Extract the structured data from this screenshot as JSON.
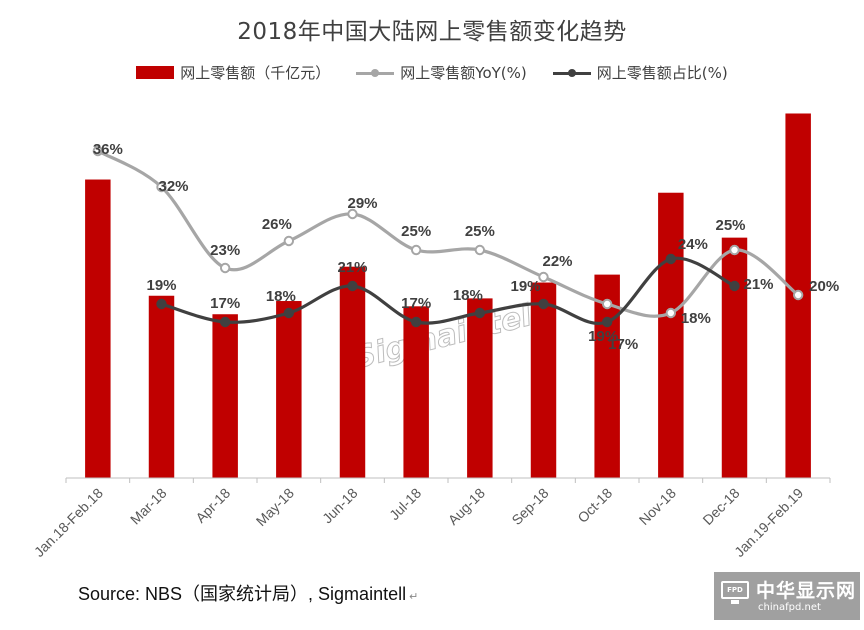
{
  "chart_data": {
    "type": "bar",
    "title": "2018年中国大陆网上零售额变化趋势",
    "categories": [
      "Jan.18-Feb.18",
      "Mar-18",
      "Apr-18",
      "May-18",
      "Jun-18",
      "Jul-18",
      "Aug-18",
      "Sep-18",
      "Oct-18",
      "Nov-18",
      "Dec-18",
      "Jan.19-Feb.19"
    ],
    "bar_series": {
      "name": "网上零售额（千亿元）",
      "values": [
        11.3,
        6.9,
        6.2,
        6.7,
        8.0,
        6.5,
        6.8,
        7.4,
        7.7,
        10.8,
        9.1,
        13.8
      ],
      "color": "#c00000"
    },
    "bar_axis": {
      "ylim": [
        0,
        14.5
      ]
    },
    "line_series": [
      {
        "name": "网上零售额YoY(%)",
        "values": [
          36,
          32,
          23,
          26,
          29,
          25,
          25,
          22,
          19,
          18,
          25,
          20
        ],
        "labels": [
          "36%",
          "32%",
          "23%",
          "26%",
          "29%",
          "25%",
          "25%",
          "22%",
          "19%",
          "18%",
          "25%",
          "20%"
        ],
        "color": "#a6a6a6"
      },
      {
        "name": "网上零售额占比(%)",
        "values": [
          null,
          19,
          17,
          18,
          21,
          17,
          18,
          19,
          17,
          24,
          21,
          null
        ],
        "labels": [
          "",
          "19%",
          "17%",
          "18%",
          "21%",
          "17%",
          "18%",
          "19%",
          "17%",
          "24%",
          "21%",
          ""
        ],
        "color": "#404040"
      }
    ],
    "line_axis": {
      "ylim": [
        0,
        40
      ]
    },
    "watermark": "Sigmaintell",
    "grid": false,
    "legend_position": "top"
  },
  "source_note": "Source: NBS（国家统计局）, Sigmaintell",
  "return_mark": "↵",
  "brand": {
    "icon": "monitor-icon",
    "icon_text": "FPD",
    "name": "中华显示网",
    "url": "chinafpd.net"
  }
}
